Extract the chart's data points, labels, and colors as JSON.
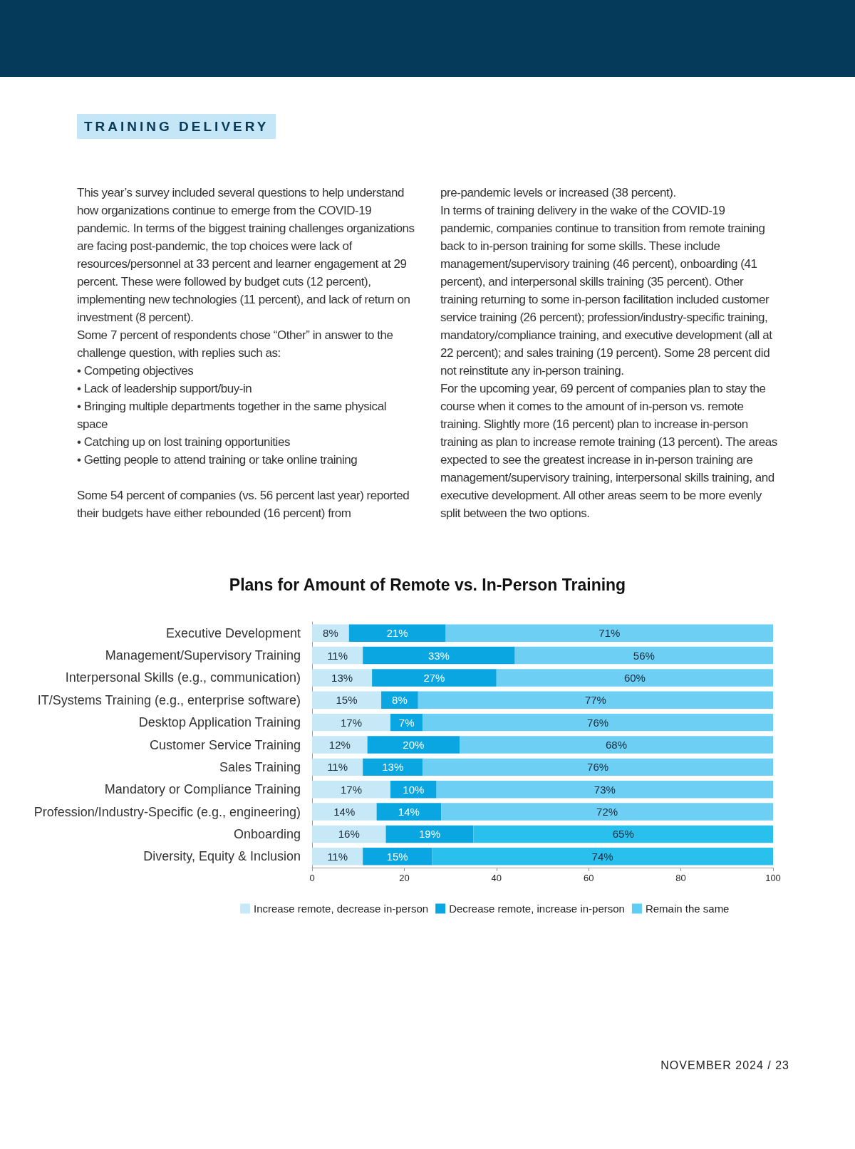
{
  "chart_data": {
    "type": "bar",
    "orientation": "horizontal",
    "stacked": true,
    "title": "Plans for Amount of Remote vs. In-Person Training",
    "categories": [
      "Executive Development",
      "Management/Supervisory Training",
      "Interpersonal Skills (e.g., communication)",
      "IT/Systems Training (e.g., enterprise software)",
      "Desktop Application Training",
      "Customer Service Training",
      "Sales Training",
      "Mandatory or Compliance Training",
      "Profession/Industry-Specific (e.g., engineering)",
      "Onboarding",
      "Diversity, Equity & Inclusion"
    ],
    "series": [
      {
        "name": "Increase remote, decrease in-person",
        "color": "#c6e8f7",
        "values": [
          8,
          11,
          13,
          15,
          17,
          12,
          11,
          17,
          14,
          16,
          11
        ],
        "value_labels": [
          "8%",
          "11%",
          "13%",
          "15%",
          "17%",
          "12%",
          "11%",
          "17%",
          "14%",
          "16%",
          "11%"
        ]
      },
      {
        "name": "Decrease remote, increase in-person",
        "color": "#0aa6e1",
        "values": [
          21,
          33,
          27,
          8,
          7,
          20,
          13,
          10,
          14,
          19,
          15
        ],
        "value_labels": [
          "21%",
          "33%",
          "27%",
          "8%",
          "7%",
          "20%",
          "13%",
          "10%",
          "14%",
          "19%",
          "15%"
        ]
      },
      {
        "name": "Remain the same",
        "color": "#5ccdf3",
        "colors": [
          "#6ccff3",
          "#6ccff3",
          "#6ccff3",
          "#6ccff3",
          "#6ccff3",
          "#6ccff3",
          "#6ccff3",
          "#6ccff3",
          "#6ccff3",
          "#29c0ee",
          "#29c0ee"
        ],
        "values": [
          71,
          56,
          60,
          77,
          76,
          68,
          76,
          73,
          72,
          65,
          74
        ],
        "value_labels": [
          "71%",
          "56%",
          "60%",
          "77%",
          "76%",
          "68%",
          "76%",
          "73%",
          "72%",
          "65%",
          "74%"
        ]
      }
    ],
    "xlim": [
      0,
      100
    ],
    "xticks": [
      0,
      20,
      40,
      60,
      80,
      100
    ],
    "grid": false,
    "legend": "bottom",
    "annotations": [
      "TRAINING DELIVERY",
      "This year’s survey included several questions to help understand how organizations continue to emerge from the COVID-19 pandemic. In terms of the biggest training challenges organizations are facing post-pandemic, the top choices were lack of resources/personnel at 33 percent and learner engagement at 29 percent. These were followed by budget cuts (12 percent), implementing new technologies (11 percent), and lack of return on investment (8 percent).\n   Some 7 percent of respondents chose “Other” in answer to the challenge question, with replies such as:\n   • Competing objectives\n   • Lack of leadership support/buy-in\n   • Bringing multiple departments together in the same physical space\n   • Catching up on lost training opportunities\n   • Getting people to attend training or take online training\n\n   Some 54 percent of companies (vs. 56 percent last year) reported their budgets have either rebounded (16 percent) from",
      "pre-pandemic levels or increased (38 percent).\n   In terms of training delivery in the wake of the COVID-19 pandemic, companies continue to transition from remote training back to in-person training for some skills. These include management/supervisory training (46 percent), onboarding (41 percent), and interpersonal skills training (35 percent). Other training returning to some in-person facilitation included customer service training (26 percent); profession/industry-specific training, mandatory/compliance training, and executive development (all at 22 percent); and sales training (19 percent). Some 28 percent did not reinstitute any in-person training.\n   For the upcoming year, 69 percent of companies plan to stay the course when it comes to the amount of in-person vs. remote training. Slightly more (16 percent) plan to increase in-person training as plan to increase remote training (13 percent). The areas expected to see the greatest increase in in-person training are management/supervisory training, interpersonal skills training, and executive development.  All other areas seem to be more evenly split between the two options.",
      "NOVEMBER 2024 / 23"
    ]
  }
}
